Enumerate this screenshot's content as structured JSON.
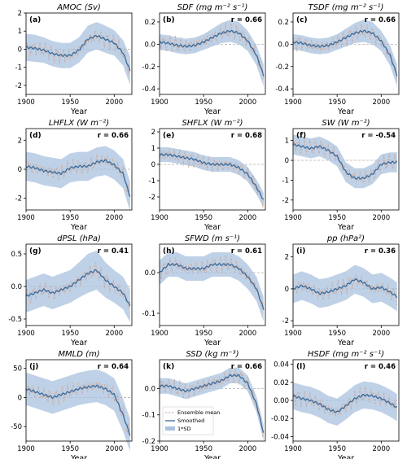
{
  "colors": {
    "band": "#a9c1dd",
    "smooth": "#3b6a99",
    "ensemble": "#c9a9a0",
    "zero": "#b0b0b0"
  },
  "legend": {
    "ensemble": "Ensemble mean",
    "smoothed": "Smoothed",
    "sd": "1*SD"
  },
  "chart_data": [
    {
      "type": "line",
      "panel": "(a)",
      "title": "AMOC (Sv)",
      "r": "",
      "xlabel": "Year",
      "xlim": [
        1900,
        2020
      ],
      "ylim": [
        -2.5,
        2.0
      ],
      "yticks": [
        "2",
        "1",
        "0",
        "-1",
        "-2"
      ],
      "ytick_values": [
        2,
        1,
        0,
        -1,
        -2
      ],
      "xticks": [
        "1900",
        "1950",
        "2000"
      ],
      "x": [
        1900,
        1910,
        1920,
        1930,
        1940,
        1950,
        1960,
        1970,
        1980,
        1990,
        2000,
        2010,
        2018
      ],
      "smoothed": [
        0.1,
        0.05,
        -0.05,
        -0.25,
        -0.35,
        -0.35,
        -0.05,
        0.55,
        0.75,
        0.55,
        0.35,
        -0.2,
        -1.2
      ],
      "sd": [
        0.75,
        0.75,
        0.7,
        0.7,
        0.7,
        0.7,
        0.7,
        0.75,
        0.75,
        0.75,
        0.7,
        0.7,
        0.8
      ]
    },
    {
      "type": "line",
      "panel": "(b)",
      "title": "SDF (mg m⁻² s⁻¹)",
      "r": "r = 0.66",
      "xlabel": "Year",
      "xlim": [
        1900,
        2020
      ],
      "ylim": [
        -0.45,
        0.28
      ],
      "yticks": [
        "0.2",
        "0.0",
        "-0.2",
        "-0.4"
      ],
      "ytick_values": [
        0.2,
        0,
        -0.2,
        -0.4
      ],
      "xticks": [
        "1900",
        "1950",
        "2000"
      ],
      "x": [
        1900,
        1910,
        1920,
        1930,
        1940,
        1950,
        1960,
        1970,
        1980,
        1990,
        2000,
        2010,
        2018
      ],
      "smoothed": [
        0.02,
        0.01,
        -0.01,
        -0.02,
        -0.01,
        0.02,
        0.06,
        0.1,
        0.12,
        0.1,
        0.03,
        -0.1,
        -0.28
      ],
      "sd": [
        0.07,
        0.07,
        0.07,
        0.07,
        0.07,
        0.07,
        0.08,
        0.09,
        0.1,
        0.1,
        0.09,
        0.09,
        0.1
      ]
    },
    {
      "type": "line",
      "panel": "(c)",
      "title": "TSDF (mg m⁻² s⁻¹)",
      "r": "r = 0.66",
      "xlabel": "Year",
      "xlim": [
        1900,
        2020
      ],
      "ylim": [
        -0.45,
        0.28
      ],
      "yticks": [
        "0.2",
        "0.0",
        "-0.2",
        "-0.4"
      ],
      "ytick_values": [
        0.2,
        0,
        -0.2,
        -0.4
      ],
      "xticks": [
        "1900",
        "1950",
        "2000"
      ],
      "x": [
        1900,
        1910,
        1920,
        1930,
        1940,
        1950,
        1960,
        1970,
        1980,
        1990,
        2000,
        2010,
        2018
      ],
      "smoothed": [
        0.02,
        0.01,
        -0.01,
        -0.02,
        -0.01,
        0.02,
        0.06,
        0.1,
        0.12,
        0.1,
        0.03,
        -0.1,
        -0.28
      ],
      "sd": [
        0.07,
        0.07,
        0.07,
        0.07,
        0.07,
        0.07,
        0.08,
        0.09,
        0.1,
        0.1,
        0.09,
        0.09,
        0.1
      ]
    },
    {
      "type": "line",
      "panel": "(d)",
      "title": "LHFLX (W m⁻²)",
      "r": "r = 0.66",
      "xlabel": "Year",
      "xlim": [
        1900,
        2020
      ],
      "ylim": [
        -2.8,
        2.8
      ],
      "yticks": [
        "2",
        "0",
        "-2"
      ],
      "ytick_values": [
        2,
        0,
        -2
      ],
      "xticks": [
        "1900",
        "1950",
        "2000"
      ],
      "x": [
        1900,
        1910,
        1920,
        1930,
        1940,
        1950,
        1960,
        1970,
        1980,
        1990,
        2000,
        2010,
        2018
      ],
      "smoothed": [
        0.2,
        0.1,
        -0.1,
        -0.2,
        -0.3,
        0.1,
        0.2,
        0.2,
        0.5,
        0.6,
        0.3,
        -0.3,
        -1.9
      ],
      "sd": [
        1.0,
        1.0,
        1.0,
        1.0,
        1.0,
        1.0,
        1.0,
        1.0,
        1.0,
        1.0,
        1.0,
        1.0,
        1.0
      ]
    },
    {
      "type": "line",
      "panel": "(e)",
      "title": "SHFLX (W m⁻²)",
      "r": "r = 0.68",
      "xlabel": "Year",
      "xlim": [
        1900,
        2020
      ],
      "ylim": [
        -2.8,
        2.2
      ],
      "yticks": [
        "2",
        "1",
        "0",
        "-1",
        "-2"
      ],
      "ytick_values": [
        2,
        1,
        0,
        -1,
        -2
      ],
      "xticks": [
        "1900",
        "1950",
        "2000"
      ],
      "x": [
        1900,
        1910,
        1920,
        1930,
        1940,
        1950,
        1960,
        1970,
        1980,
        1990,
        2000,
        2010,
        2018
      ],
      "smoothed": [
        0.6,
        0.6,
        0.5,
        0.4,
        0.3,
        0.1,
        0.0,
        0.0,
        0.0,
        -0.2,
        -0.6,
        -1.4,
        -2.2
      ],
      "sd": [
        0.45,
        0.45,
        0.45,
        0.45,
        0.45,
        0.45,
        0.45,
        0.45,
        0.45,
        0.45,
        0.45,
        0.45,
        0.45
      ]
    },
    {
      "type": "line",
      "panel": "(f)",
      "title": "SW (W m⁻²)",
      "r": "r = -0.54",
      "xlabel": "Year",
      "xlim": [
        1900,
        2020
      ],
      "ylim": [
        -2.5,
        1.6
      ],
      "yticks": [
        "1",
        "0",
        "-1",
        "-2"
      ],
      "ytick_values": [
        1,
        0,
        -1,
        -2
      ],
      "xticks": [
        "1900",
        "1950",
        "2000"
      ],
      "x": [
        1900,
        1910,
        1920,
        1930,
        1940,
        1950,
        1960,
        1970,
        1980,
        1990,
        2000,
        2010,
        2018
      ],
      "smoothed": [
        0.8,
        0.7,
        0.6,
        0.7,
        0.5,
        0.2,
        -0.6,
        -0.9,
        -0.9,
        -0.7,
        -0.2,
        -0.1,
        -0.1
      ],
      "sd": [
        0.5,
        0.5,
        0.5,
        0.5,
        0.5,
        0.5,
        0.5,
        0.5,
        0.5,
        0.5,
        0.5,
        0.5,
        0.5
      ]
    },
    {
      "type": "line",
      "panel": "(g)",
      "title": "dPSL (hPa)",
      "r": "r = 0.41",
      "xlabel": "Year",
      "xlim": [
        1900,
        2020
      ],
      "ylim": [
        -0.6,
        0.65
      ],
      "yticks": [
        "0.5",
        "0.0",
        "-0.5"
      ],
      "ytick_values": [
        0.5,
        0,
        -0.5
      ],
      "xticks": [
        "1900",
        "1950",
        "2000"
      ],
      "x": [
        1900,
        1910,
        1920,
        1930,
        1940,
        1950,
        1960,
        1970,
        1980,
        1990,
        2000,
        2010,
        2018
      ],
      "smoothed": [
        -0.15,
        -0.1,
        -0.05,
        -0.1,
        -0.05,
        0.0,
        0.1,
        0.2,
        0.25,
        0.1,
        0.0,
        -0.1,
        -0.3
      ],
      "sd": [
        0.25,
        0.25,
        0.25,
        0.25,
        0.25,
        0.25,
        0.27,
        0.3,
        0.3,
        0.27,
        0.25,
        0.25,
        0.25
      ]
    },
    {
      "type": "line",
      "panel": "(h)",
      "title": "SFWD (m s⁻¹)",
      "r": "r = 0.61",
      "xlabel": "Year",
      "xlim": [
        1900,
        2020
      ],
      "ylim": [
        -0.13,
        0.07
      ],
      "yticks": [
        "0.0",
        "-0.1"
      ],
      "ytick_values": [
        0,
        -0.1
      ],
      "xticks": [
        "1900",
        "1950",
        "2000"
      ],
      "x": [
        1900,
        1910,
        1920,
        1930,
        1940,
        1950,
        1960,
        1970,
        1980,
        1990,
        2000,
        2010,
        2018
      ],
      "smoothed": [
        0.0,
        0.02,
        0.02,
        0.01,
        0.01,
        0.01,
        0.02,
        0.02,
        0.02,
        0.01,
        -0.01,
        -0.04,
        -0.09
      ],
      "sd": [
        0.03,
        0.03,
        0.03,
        0.03,
        0.03,
        0.03,
        0.03,
        0.03,
        0.03,
        0.03,
        0.03,
        0.03,
        0.03
      ]
    },
    {
      "type": "line",
      "panel": "(i)",
      "title": "pp (hPa²)",
      "r": "r = 0.36",
      "xlabel": "Year",
      "xlim": [
        1900,
        2020
      ],
      "ylim": [
        -2.3,
        2.8
      ],
      "yticks": [
        "2",
        "0",
        "-2"
      ],
      "ytick_values": [
        2,
        0,
        -2
      ],
      "xticks": [
        "1900",
        "1950",
        "2000"
      ],
      "x": [
        1900,
        1910,
        1920,
        1930,
        1940,
        1950,
        1960,
        1970,
        1980,
        1990,
        2000,
        2010,
        2018
      ],
      "smoothed": [
        0.0,
        0.2,
        0.0,
        -0.3,
        -0.2,
        0.0,
        0.2,
        0.6,
        0.4,
        0.0,
        0.1,
        -0.2,
        -0.5
      ],
      "sd": [
        0.9,
        0.9,
        0.9,
        0.9,
        0.9,
        0.9,
        0.9,
        0.9,
        0.9,
        0.9,
        0.9,
        0.9,
        0.9
      ]
    },
    {
      "type": "line",
      "panel": "(j)",
      "title": "MMLD (m)",
      "r": "r = 0.64",
      "xlabel": "Year",
      "xlim": [
        1900,
        2020
      ],
      "ylim": [
        -75,
        65
      ],
      "yticks": [
        "50",
        "0",
        "-50"
      ],
      "ytick_values": [
        50,
        0,
        -50
      ],
      "xticks": [
        "1900",
        "1950",
        "2000"
      ],
      "x": [
        1900,
        1910,
        1920,
        1930,
        1940,
        1950,
        1960,
        1970,
        1980,
        1990,
        2000,
        2010,
        2018
      ],
      "smoothed": [
        15,
        10,
        5,
        0,
        5,
        10,
        15,
        18,
        20,
        15,
        5,
        -30,
        -65
      ],
      "sd": [
        28,
        28,
        28,
        28,
        28,
        28,
        28,
        28,
        28,
        28,
        28,
        28,
        28
      ]
    },
    {
      "type": "line",
      "panel": "(k)",
      "title": "SSD (kg m⁻³)",
      "r": "r = 0.66",
      "xlabel": "Year",
      "xlim": [
        1900,
        2020
      ],
      "ylim": [
        -0.2,
        0.11
      ],
      "yticks": [
        "0.0",
        "-0.1",
        "-0.2"
      ],
      "ytick_values": [
        0,
        -0.1,
        -0.2
      ],
      "xticks": [
        "1900",
        "1950",
        "2000"
      ],
      "x": [
        1900,
        1910,
        1920,
        1930,
        1940,
        1950,
        1960,
        1970,
        1980,
        1990,
        2000,
        2010,
        2018
      ],
      "smoothed": [
        0.01,
        0.01,
        0.0,
        -0.01,
        0.0,
        0.01,
        0.02,
        0.03,
        0.05,
        0.05,
        0.02,
        -0.06,
        -0.17
      ],
      "sd": [
        0.03,
        0.03,
        0.03,
        0.03,
        0.03,
        0.03,
        0.03,
        0.03,
        0.03,
        0.03,
        0.03,
        0.03,
        0.03
      ]
    },
    {
      "type": "line",
      "panel": "(l)",
      "title": "HSDF (mg m⁻² s⁻¹)",
      "r": "r = 0.46",
      "xlabel": "Year",
      "xlim": [
        1900,
        2020
      ],
      "ylim": [
        -0.045,
        0.045
      ],
      "yticks": [
        "0.04",
        "0.02",
        "0.00",
        "-0.02",
        "-0.04"
      ],
      "ytick_values": [
        0.04,
        0.02,
        0,
        -0.02,
        -0.04
      ],
      "xticks": [
        "1900",
        "1950",
        "2000"
      ],
      "x": [
        1900,
        1910,
        1920,
        1930,
        1940,
        1950,
        1960,
        1970,
        1980,
        1990,
        2000,
        2010,
        2018
      ],
      "smoothed": [
        0.005,
        0.002,
        0.0,
        -0.004,
        -0.01,
        -0.013,
        -0.006,
        0.002,
        0.006,
        0.005,
        0.002,
        -0.003,
        -0.008
      ],
      "sd": [
        0.015,
        0.015,
        0.015,
        0.015,
        0.015,
        0.015,
        0.015,
        0.015,
        0.015,
        0.015,
        0.015,
        0.015,
        0.015
      ]
    }
  ]
}
